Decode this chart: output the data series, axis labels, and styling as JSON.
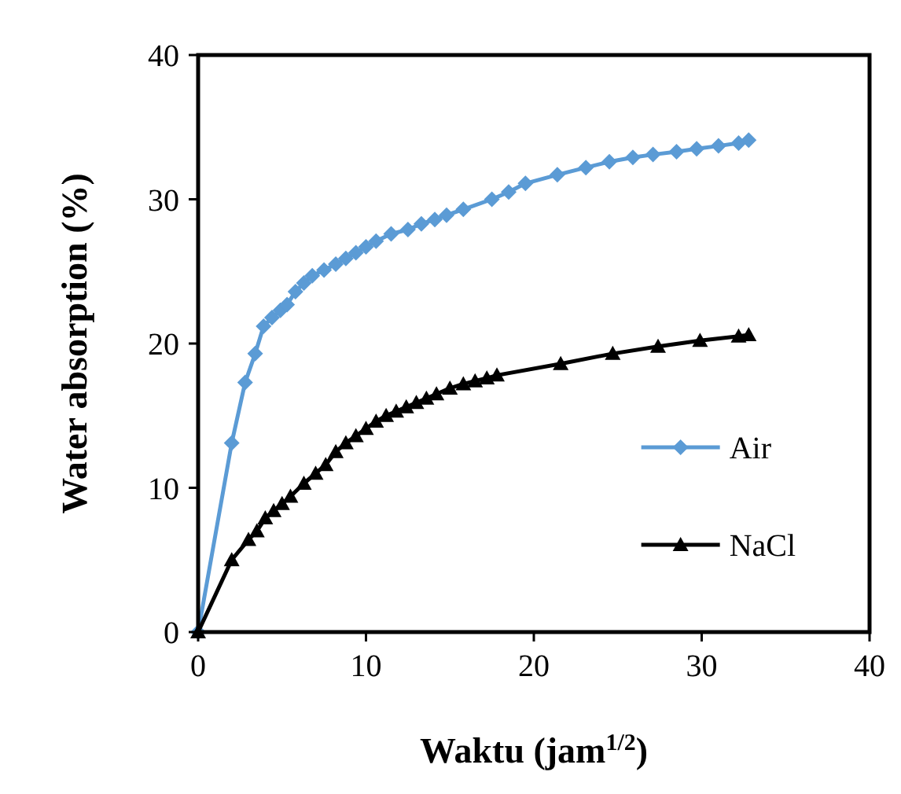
{
  "chart_data": {
    "type": "line",
    "xlabel": "Waktu (jam$^{1/2}$)",
    "ylabel": "Water absorption (%)",
    "xlim": [
      0,
      40
    ],
    "xticks": [
      0,
      10,
      20,
      30,
      40
    ],
    "ylim": [
      0,
      40
    ],
    "yticks": [
      0,
      10,
      20,
      30,
      40
    ],
    "grid": false,
    "legend": "right",
    "series": [
      {
        "name": "Air",
        "color": "#5b9bd5",
        "marker": "diamond",
        "x": [
          0,
          2,
          2.8,
          3.4,
          3.9,
          4.4,
          4.9,
          5.3,
          5.8,
          6.3,
          6.8,
          7.5,
          8.2,
          8.8,
          9.4,
          10,
          10.6,
          11.5,
          12.5,
          13.3,
          14.1,
          14.8,
          15.8,
          17.5,
          18.5,
          19.5,
          21.4,
          23.1,
          24.5,
          25.9,
          27.1,
          28.5,
          29.7,
          31,
          32.2,
          32.8
        ],
        "values": [
          0,
          13.1,
          17.3,
          19.3,
          21.2,
          21.8,
          22.3,
          22.7,
          23.6,
          24.2,
          24.7,
          25.1,
          25.5,
          25.9,
          26.3,
          26.7,
          27.1,
          27.6,
          27.9,
          28.3,
          28.6,
          28.9,
          29.3,
          30,
          30.5,
          31.1,
          31.7,
          32.2,
          32.6,
          32.9,
          33.1,
          33.3,
          33.5,
          33.7,
          33.9,
          34.1
        ]
      },
      {
        "name": "NaCl",
        "color": "#000000",
        "marker": "triangle",
        "x": [
          0,
          2,
          3,
          3.5,
          4,
          4.5,
          5,
          5.5,
          6.3,
          7,
          7.6,
          8.2,
          8.8,
          9.4,
          10,
          10.6,
          11.2,
          11.8,
          12.4,
          13,
          13.6,
          14.2,
          15,
          15.8,
          16.5,
          17.2,
          17.8,
          21.6,
          24.7,
          27.4,
          29.9,
          32.2,
          32.8
        ],
        "values": [
          0,
          5,
          6.4,
          7,
          7.9,
          8.4,
          8.9,
          9.4,
          10.3,
          11,
          11.6,
          12.5,
          13.1,
          13.6,
          14.1,
          14.6,
          15,
          15.3,
          15.6,
          15.9,
          16.2,
          16.5,
          16.9,
          17.2,
          17.4,
          17.6,
          17.8,
          18.6,
          19.3,
          19.8,
          20.2,
          20.5,
          20.6
        ]
      }
    ]
  }
}
